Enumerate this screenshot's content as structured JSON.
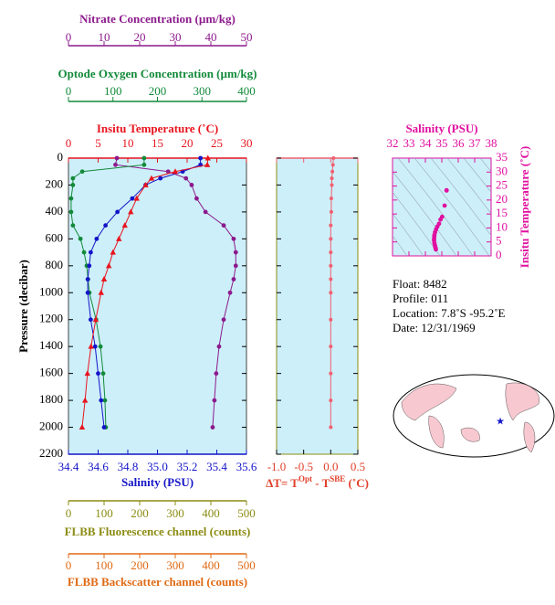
{
  "chart_data": [
    {
      "type": "profile",
      "ylabel": "Pressure (decibar)",
      "ylim": [
        0,
        2200
      ],
      "yticks": [
        0,
        200,
        400,
        600,
        800,
        1000,
        1200,
        1400,
        1600,
        1800,
        2000,
        2200
      ],
      "pressure": [
        0,
        50,
        100,
        150,
        200,
        300,
        400,
        500,
        600,
        700,
        800,
        900,
        1000,
        1200,
        1400,
        1600,
        1800,
        2000
      ],
      "axes": [
        {
          "label": "Nitrate Concentration (µm/kg)",
          "color": "#8c1a8c",
          "xlim": [
            0,
            50
          ],
          "xticks": [
            0,
            10,
            20,
            30,
            40,
            50
          ]
        },
        {
          "label": "Optode Oxygen Concentration (µm/kg)",
          "color": "#128a3a",
          "xlim": [
            0,
            400
          ],
          "xticks": [
            0,
            100,
            200,
            300,
            400
          ]
        },
        {
          "label": "Insitu Temperature (˚C)",
          "color": "#e8141e",
          "xlim": [
            0,
            30
          ],
          "xticks": [
            0,
            5,
            10,
            15,
            20,
            25,
            30
          ]
        },
        {
          "label": "Salinity (PSU)",
          "color": "#1414c8",
          "xlim": [
            34.4,
            35.6
          ],
          "xticks": [
            34.4,
            34.6,
            34.8,
            {
              "value": 35,
              "label": "35.0"
            },
            35.2,
            35.4,
            35.6
          ]
        },
        {
          "label": "FLBB Fluorescence channel (counts)",
          "color": "#8c8c14",
          "xlim": [
            0,
            500
          ],
          "xticks": [
            0,
            100,
            200,
            300,
            400,
            500
          ]
        },
        {
          "label": "FLBB Backscatter channel (counts)",
          "color": "#e06a14",
          "xlim": [
            0,
            500
          ],
          "xticks": [
            0,
            100,
            200,
            300,
            400,
            500
          ]
        }
      ],
      "series": [
        {
          "axis": 0,
          "color": "#8c1a8c",
          "marker": "circle",
          "values": [
            13.6,
            13.2,
            28,
            33,
            34.6,
            36,
            38.5,
            43.6,
            46.4,
            47,
            47,
            46.4,
            45.4,
            43.6,
            42.3,
            41.5,
            41,
            40.5
          ]
        },
        {
          "axis": 1,
          "color": "#128a3a",
          "marker": "circle",
          "values": [
            170,
            170,
            31,
            10,
            10,
            6,
            6,
            10,
            27,
            35,
            41,
            44,
            47,
            62,
            72,
            78,
            82,
            84
          ]
        },
        {
          "axis": 3,
          "color": "#1414c8",
          "marker": "circle",
          "values": [
            35.29,
            35.29,
            35.17,
            35.02,
            34.92,
            34.83,
            34.73,
            34.65,
            34.59,
            34.55,
            34.54,
            34.53,
            34.53,
            34.55,
            34.58,
            34.6,
            34.62,
            34.64
          ]
        },
        {
          "axis": 2,
          "color": "#e8141e",
          "marker": "triangle",
          "values": [
            23.5,
            23.4,
            18,
            14,
            13,
            11.5,
            10.5,
            9.5,
            8.5,
            7.5,
            6.8,
            6,
            5.5,
            4.6,
            3.8,
            3.2,
            2.8,
            2.3
          ]
        }
      ]
    },
    {
      "type": "difference",
      "xlabel_parts": [
        "ΔT= T",
        "Opt",
        " - T",
        "SBE",
        " (˚C)"
      ],
      "color": "#f06070",
      "label_color": "#e0402a",
      "xlim": [
        -1,
        0.5
      ],
      "xticks": [
        {
          "value": -1,
          "label": "-1.0"
        },
        -0.5,
        {
          "value": 0,
          "label": "0.0"
        },
        0.5
      ],
      "ylim": [
        0,
        2200
      ],
      "values": [
        0.05,
        0.04,
        0.03,
        0.02,
        0.02,
        0.01,
        0.01,
        0,
        0,
        0,
        0,
        0,
        0,
        0,
        0,
        0,
        0,
        0
      ]
    },
    {
      "type": "ts",
      "xlabel": "Salinity (PSU)",
      "ylabel": "Insitu Temperature (˚C)",
      "color": "#e010a0",
      "xlim": [
        32,
        38
      ],
      "xticks": [
        32,
        33,
        34,
        35,
        36,
        37,
        38
      ],
      "ylim": [
        0,
        35
      ],
      "yticks": [
        0,
        5,
        10,
        15,
        20,
        25,
        30,
        35
      ]
    }
  ],
  "info": [
    "Float:  8482",
    "Profile:  011",
    "Location:  7.8˚S  -95.2˚E",
    "Date:  12/31/1969"
  ]
}
